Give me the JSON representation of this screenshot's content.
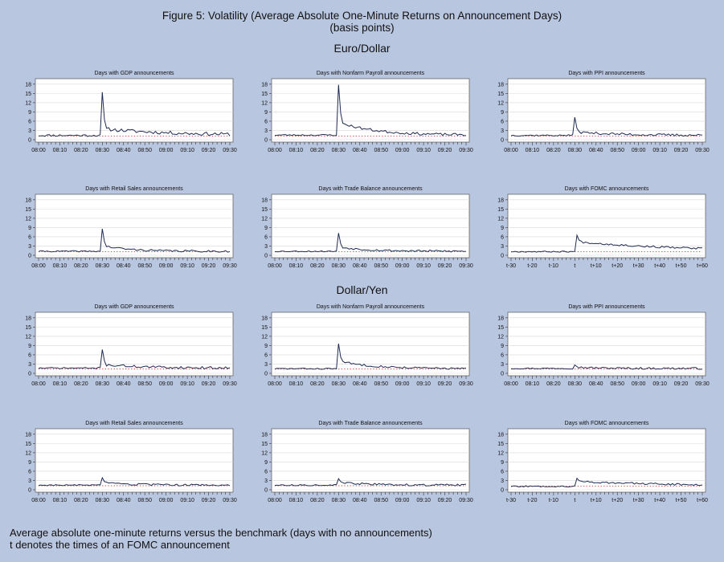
{
  "figure": {
    "title": "Figure 5: Volatility (Average Absolute One-Minute Returns on Announcement Days)",
    "subtitle": "(basis points)",
    "sections": [
      "Euro/Dollar",
      "Dollar/Yen"
    ]
  },
  "footer": {
    "line1": "Average absolute one-minute returns versus the benchmark (days with no announcements)",
    "line2": "t denotes the times of an FOMC announcement"
  },
  "colors": {
    "background": "#b9c6e0",
    "series": "#1f2a52",
    "benchmark": "#c0392b",
    "grid": "#d8d8d8"
  },
  "chart_data": [
    {
      "type": "line",
      "title": "Days with GDP announcements",
      "currency": "Euro/Dollar",
      "xticks": [
        "08:00",
        "08:10",
        "08:20",
        "08:30",
        "08:40",
        "08:50",
        "09:00",
        "09:10",
        "09:20",
        "09:30"
      ],
      "yticks": [
        0,
        3,
        6,
        9,
        12,
        15,
        18
      ],
      "ylim": [
        0,
        19
      ],
      "xlim": [
        0,
        90
      ],
      "benchmark": 1.2,
      "baseline": 1.4,
      "noise": 0.7,
      "peak_x": 30,
      "peak": 15.4,
      "after": 3.5,
      "decay": 0.03,
      "seed": 11
    },
    {
      "type": "line",
      "title": "Days with Nonfarm Payroll announcements",
      "currency": "Euro/Dollar",
      "xticks": [
        "08:00",
        "08:10",
        "08:20",
        "08:30",
        "08:40",
        "08:50",
        "09:00",
        "09:10",
        "09:20",
        "09:30"
      ],
      "yticks": [
        0,
        3,
        6,
        9,
        12,
        15,
        18
      ],
      "ylim": [
        0,
        19
      ],
      "xlim": [
        0,
        90
      ],
      "benchmark": 1.2,
      "baseline": 1.5,
      "noise": 0.5,
      "peak_x": 30,
      "peak": 17.8,
      "after": 5.5,
      "decay": 0.06,
      "seed": 23
    },
    {
      "type": "line",
      "title": "Days with PPI announcements",
      "currency": "Euro/Dollar",
      "xticks": [
        "08:00",
        "08:10",
        "08:20",
        "08:30",
        "08:40",
        "08:50",
        "09:00",
        "09:10",
        "09:20",
        "09:30"
      ],
      "yticks": [
        0,
        3,
        6,
        9,
        12,
        15,
        18
      ],
      "ylim": [
        0,
        19
      ],
      "xlim": [
        0,
        90
      ],
      "benchmark": 1.2,
      "baseline": 1.4,
      "noise": 0.5,
      "peak_x": 30,
      "peak": 7.3,
      "after": 2.5,
      "decay": 0.05,
      "seed": 37
    },
    {
      "type": "line",
      "title": "Days with Retail Sales announcements",
      "currency": "Euro/Dollar",
      "xticks": [
        "08:00",
        "08:10",
        "08:20",
        "08:30",
        "08:40",
        "08:50",
        "09:00",
        "09:10",
        "09:20",
        "09:30"
      ],
      "yticks": [
        0,
        3,
        6,
        9,
        12,
        15,
        18
      ],
      "ylim": [
        0,
        19
      ],
      "xlim": [
        0,
        90
      ],
      "benchmark": 1.2,
      "baseline": 1.3,
      "noise": 0.4,
      "peak_x": 30,
      "peak": 8.6,
      "after": 3.0,
      "decay": 0.08,
      "seed": 41
    },
    {
      "type": "line",
      "title": "Days with Trade Balance announcements",
      "currency": "Euro/Dollar",
      "xticks": [
        "08:00",
        "08:10",
        "08:20",
        "08:30",
        "08:40",
        "08:50",
        "09:00",
        "09:10",
        "09:20",
        "09:30"
      ],
      "yticks": [
        0,
        3,
        6,
        9,
        12,
        15,
        18
      ],
      "ylim": [
        0,
        19
      ],
      "xlim": [
        0,
        90
      ],
      "benchmark": 1.2,
      "baseline": 1.3,
      "noise": 0.4,
      "peak_x": 30,
      "peak": 7.2,
      "after": 2.6,
      "decay": 0.07,
      "seed": 53
    },
    {
      "type": "line",
      "title": "Days with FOMC announcements",
      "currency": "Euro/Dollar",
      "xticks": [
        "t-30",
        "t-20",
        "t-10",
        "t",
        "t+10",
        "t+20",
        "t+30",
        "t+40",
        "t+50",
        "t+60"
      ],
      "yticks": [
        0,
        3,
        6,
        9,
        12,
        15,
        18
      ],
      "ylim": [
        0,
        19
      ],
      "xlim": [
        0,
        90
      ],
      "benchmark": 1.2,
      "baseline": 1.2,
      "noise": 0.4,
      "peak_x": 31,
      "peak": 6.5,
      "after": 4.4,
      "decay": 0.02,
      "seed": 67
    },
    {
      "type": "line",
      "title": "Days with GDP announcements",
      "currency": "Dollar/Yen",
      "xticks": [
        "08:00",
        "08:10",
        "08:20",
        "08:30",
        "08:40",
        "08:50",
        "09:00",
        "09:10",
        "09:20",
        "09:30"
      ],
      "yticks": [
        0,
        3,
        6,
        9,
        12,
        15,
        18
      ],
      "ylim": [
        0,
        19
      ],
      "xlim": [
        0,
        90
      ],
      "benchmark": 1.4,
      "baseline": 1.7,
      "noise": 0.5,
      "peak_x": 30,
      "peak": 7.7,
      "after": 2.8,
      "decay": 0.05,
      "seed": 71
    },
    {
      "type": "line",
      "title": "Days with Nonfarm Payroll announcements",
      "currency": "Dollar/Yen",
      "xticks": [
        "08:00",
        "08:10",
        "08:20",
        "08:30",
        "08:40",
        "08:50",
        "09:00",
        "09:10",
        "09:20",
        "09:30"
      ],
      "yticks": [
        0,
        3,
        6,
        9,
        12,
        15,
        18
      ],
      "ylim": [
        0,
        19
      ],
      "xlim": [
        0,
        90
      ],
      "benchmark": 1.4,
      "baseline": 1.5,
      "noise": 0.4,
      "peak_x": 30,
      "peak": 9.6,
      "after": 3.8,
      "decay": 0.06,
      "seed": 83
    },
    {
      "type": "line",
      "title": "Days with PPI announcements",
      "currency": "Dollar/Yen",
      "xticks": [
        "08:00",
        "08:10",
        "08:20",
        "08:30",
        "08:40",
        "08:50",
        "09:00",
        "09:10",
        "09:20",
        "09:30"
      ],
      "yticks": [
        0,
        3,
        6,
        9,
        12,
        15,
        18
      ],
      "ylim": [
        0,
        19
      ],
      "xlim": [
        0,
        90
      ],
      "benchmark": 1.4,
      "baseline": 1.6,
      "noise": 0.4,
      "peak_x": 30,
      "peak": 2.7,
      "after": 2.0,
      "decay": 0.1,
      "seed": 97
    },
    {
      "type": "line",
      "title": "Days with Retail Sales announcements",
      "currency": "Dollar/Yen",
      "xticks": [
        "08:00",
        "08:10",
        "08:20",
        "08:30",
        "08:40",
        "08:50",
        "09:00",
        "09:10",
        "09:20",
        "09:30"
      ],
      "yticks": [
        0,
        3,
        6,
        9,
        12,
        15,
        18
      ],
      "ylim": [
        0,
        19
      ],
      "xlim": [
        0,
        90
      ],
      "benchmark": 1.3,
      "baseline": 1.5,
      "noise": 0.4,
      "peak_x": 30,
      "peak": 3.9,
      "after": 2.2,
      "decay": 0.08,
      "seed": 103
    },
    {
      "type": "line",
      "title": "Days with Trade Balance announcements",
      "currency": "Dollar/Yen",
      "xticks": [
        "08:00",
        "08:10",
        "08:20",
        "08:30",
        "08:40",
        "08:50",
        "09:00",
        "09:10",
        "09:20",
        "09:30"
      ],
      "yticks": [
        0,
        3,
        6,
        9,
        12,
        15,
        18
      ],
      "ylim": [
        0,
        19
      ],
      "xlim": [
        0,
        90
      ],
      "benchmark": 1.3,
      "baseline": 1.5,
      "noise": 0.4,
      "peak_x": 30,
      "peak": 3.6,
      "after": 2.3,
      "decay": 0.07,
      "seed": 113
    },
    {
      "type": "line",
      "title": "Days with FOMC announcements",
      "currency": "Dollar/Yen",
      "xticks": [
        "t-30",
        "t-20",
        "t-10",
        "t",
        "t+10",
        "t+20",
        "t+30",
        "t+40",
        "t+50",
        "t+60"
      ],
      "yticks": [
        0,
        3,
        6,
        9,
        12,
        15,
        18
      ],
      "ylim": [
        0,
        19
      ],
      "xlim": [
        0,
        90
      ],
      "benchmark": 1.2,
      "baseline": 1.1,
      "noise": 0.4,
      "peak_x": 31,
      "peak": 3.7,
      "after": 2.7,
      "decay": 0.02,
      "seed": 127
    }
  ]
}
